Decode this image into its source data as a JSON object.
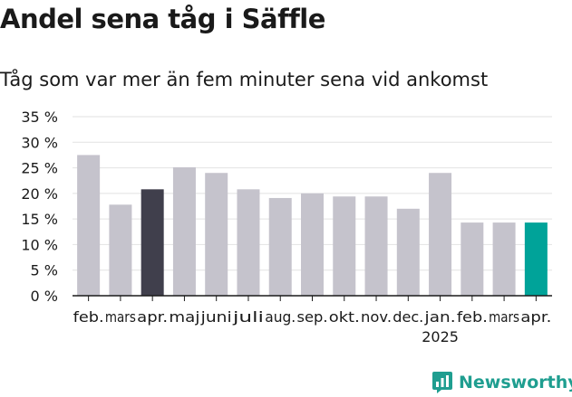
{
  "header": {
    "title": "Andel sena tåg i Säffle",
    "subtitle": "Tåg som var mer än fem minuter sena vid ankomst"
  },
  "brand": {
    "name": "Newsworthy",
    "color": "#1f9e90"
  },
  "colors": {
    "default_bar": "#c5c3cc",
    "highlight_prev": "#403f4c",
    "highlight_current": "#00a399",
    "grid": "#e2e2e2",
    "axis": "#1a1a1a"
  },
  "chart_data": {
    "type": "bar",
    "title": "Andel sena tåg i Säffle",
    "subtitle": "Tåg som var mer än fem minuter sena vid ankomst",
    "categories": [
      "feb.",
      "mars",
      "apr.",
      "maj",
      "juni",
      "juli",
      "aug.",
      "sep.",
      "okt.",
      "nov.",
      "dec.",
      "jan.",
      "feb.",
      "mars",
      "apr."
    ],
    "year_label": {
      "index": 11,
      "text": "2025"
    },
    "values": [
      27.5,
      17.8,
      20.8,
      25.1,
      24.0,
      20.8,
      19.1,
      20.0,
      19.4,
      19.4,
      17.0,
      24.0,
      14.3,
      14.3,
      14.3
    ],
    "highlight": {
      "2": "#403f4c",
      "14": "#00a399"
    },
    "ylim": [
      0,
      35
    ],
    "yticks": [
      0,
      5,
      10,
      15,
      20,
      25,
      30,
      35
    ],
    "ytick_labels": [
      "0 %",
      "5 %",
      "10 %",
      "15 %",
      "20 %",
      "25 %",
      "30 %",
      "35 %"
    ],
    "grid": true
  }
}
